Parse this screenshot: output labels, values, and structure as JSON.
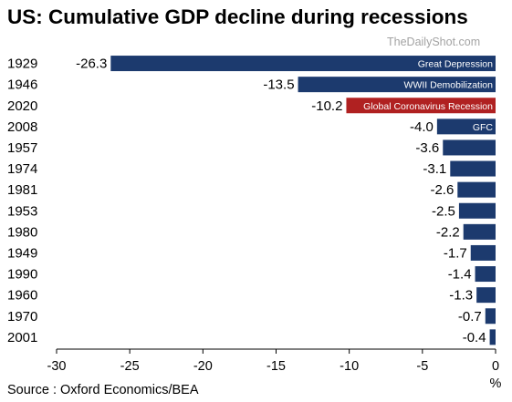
{
  "title": "US: Cumulative GDP decline during recessions",
  "watermark": "TheDailyShot.com",
  "source": "Source : Oxford Economics/BEA",
  "colors": {
    "bar": "#1c3a6e",
    "highlight": "#b02121"
  },
  "chart_data": {
    "type": "bar",
    "orientation": "horizontal",
    "title": "US: Cumulative GDP decline during recessions",
    "xlabel": "%",
    "ylabel": "",
    "xlim": [
      -30,
      0
    ],
    "xticks": [
      -30,
      -25,
      -20,
      -15,
      -10,
      -5,
      0
    ],
    "grid": false,
    "categories": [
      "1929",
      "1946",
      "2020",
      "2008",
      "1957",
      "1974",
      "1981",
      "1953",
      "1980",
      "1949",
      "1990",
      "1960",
      "1970",
      "2001"
    ],
    "values": [
      -26.3,
      -13.5,
      -10.2,
      -4.0,
      -3.6,
      -3.1,
      -2.6,
      -2.5,
      -2.2,
      -1.7,
      -1.4,
      -1.3,
      -0.7,
      -0.4
    ],
    "value_labels": [
      "-26.3",
      "-13.5",
      "-10.2",
      "-4.0",
      "-3.6",
      "-3.1",
      "-2.6",
      "-2.5",
      "-2.2",
      "-1.7",
      "-1.4",
      "-1.3",
      "-0.7",
      "-0.4"
    ],
    "highlight_index": 2,
    "annotations": [
      {
        "category": "1929",
        "text": "Great Depression"
      },
      {
        "category": "1946",
        "text": "WWII Demobilization"
      },
      {
        "category": "2020",
        "text": "Global Coronavirus Recession"
      },
      {
        "category": "2008",
        "text": "GFC"
      }
    ]
  }
}
